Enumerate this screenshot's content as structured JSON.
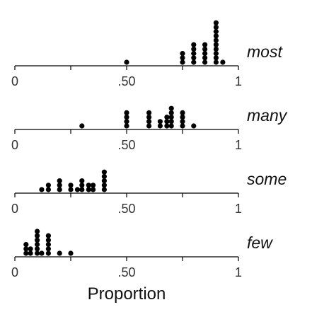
{
  "chart_data": {
    "type": "dotplot",
    "xlabel": "Proportion",
    "xlim": [
      0,
      1
    ],
    "ticks": [
      {
        "value": 0,
        "label": "0"
      },
      {
        "value": 0.25,
        "label": ""
      },
      {
        "value": 0.5,
        "label": ".50"
      },
      {
        "value": 0.75,
        "label": ""
      },
      {
        "value": 1,
        "label": "1"
      }
    ],
    "panels": [
      {
        "name": "most",
        "dots": [
          {
            "x": 0.5,
            "count": 1
          },
          {
            "x": 0.75,
            "count": 3
          },
          {
            "x": 0.8,
            "count": 5
          },
          {
            "x": 0.85,
            "count": 5
          },
          {
            "x": 0.9,
            "count": 10
          },
          {
            "x": 0.93,
            "count": 1
          }
        ]
      },
      {
        "name": "many",
        "dots": [
          {
            "x": 0.3,
            "count": 1
          },
          {
            "x": 0.5,
            "count": 4
          },
          {
            "x": 0.6,
            "count": 4
          },
          {
            "x": 0.65,
            "count": 2
          },
          {
            "x": 0.68,
            "count": 3
          },
          {
            "x": 0.7,
            "count": 5
          },
          {
            "x": 0.75,
            "count": 4
          },
          {
            "x": 0.8,
            "count": 1
          }
        ]
      },
      {
        "name": "some",
        "dots": [
          {
            "x": 0.12,
            "count": 1
          },
          {
            "x": 0.15,
            "count": 2
          },
          {
            "x": 0.2,
            "count": 3
          },
          {
            "x": 0.25,
            "count": 2
          },
          {
            "x": 0.28,
            "count": 1
          },
          {
            "x": 0.3,
            "count": 3
          },
          {
            "x": 0.33,
            "count": 2
          },
          {
            "x": 0.35,
            "count": 2
          },
          {
            "x": 0.4,
            "count": 5
          }
        ]
      },
      {
        "name": "few",
        "dots": [
          {
            "x": 0.05,
            "count": 3
          },
          {
            "x": 0.07,
            "count": 2
          },
          {
            "x": 0.1,
            "count": 6
          },
          {
            "x": 0.12,
            "count": 1
          },
          {
            "x": 0.15,
            "count": 5
          },
          {
            "x": 0.2,
            "count": 1
          },
          {
            "x": 0.25,
            "count": 1
          }
        ]
      }
    ]
  }
}
